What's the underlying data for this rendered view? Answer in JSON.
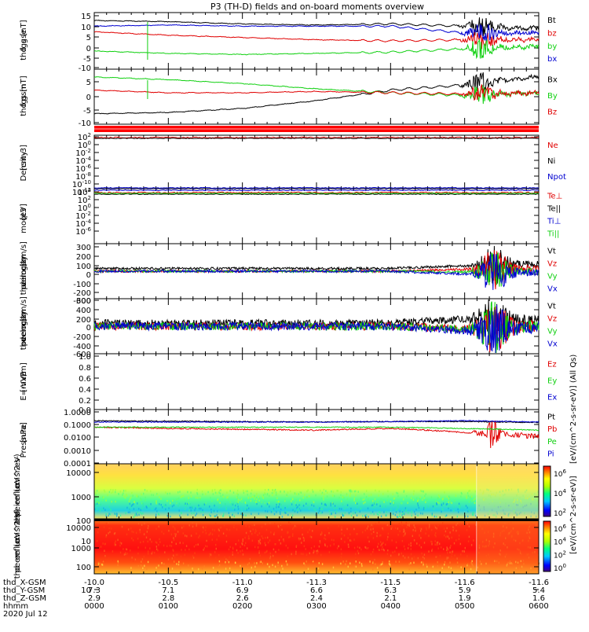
{
  "title": "P3 (TH-D) fields and on-board moments overview",
  "colors": {
    "black": "#000000",
    "red": "#e00000",
    "green": "#10d010",
    "blue": "#0000d0"
  },
  "panels": [
    {
      "id": "fgs-gse",
      "label_lines": [
        "thd",
        "fgs",
        "gse",
        "[nT]"
      ],
      "ticks": [
        "15",
        "10",
        "5",
        "0",
        "-5",
        "-10"
      ],
      "legend": [
        {
          "text": "Bt",
          "color": "#000000"
        },
        {
          "text": "bz",
          "color": "#e00000"
        },
        {
          "text": "by",
          "color": "#10d010"
        },
        {
          "text": "bx",
          "color": "#0000d0"
        }
      ]
    },
    {
      "id": "fgs-gsm",
      "label_lines": [
        "thd",
        "fgs",
        "gsm",
        "[nT]"
      ],
      "ticks": [
        "5",
        "0",
        "-5",
        "-10"
      ],
      "legend": [
        {
          "text": "Bx",
          "color": "#000000"
        },
        {
          "text": "By",
          "color": "#10d010"
        },
        {
          "text": "Bz",
          "color": "#e00000"
        }
      ]
    },
    {
      "id": "density",
      "label_lines": [
        "Density",
        "[cm-3]"
      ],
      "ticks": [
        "10",
        "10",
        "10",
        "10",
        "10",
        "10",
        "10",
        "10"
      ],
      "tick_exponents": [
        "2",
        "0",
        "-2",
        "-4",
        "-6",
        "-8",
        "-10",
        "-12"
      ],
      "legend": [
        {
          "text": "Ne",
          "color": "#e00000"
        },
        {
          "text": "Ni",
          "color": "#000000"
        },
        {
          "text": "Npot",
          "color": "#0000d0"
        }
      ]
    },
    {
      "id": "temperature",
      "label_lines": [
        "moqt3",
        "[eV]"
      ],
      "ticks": [
        "10",
        "10",
        "10",
        "10",
        "10",
        "10"
      ],
      "tick_exponents": [
        "4",
        "2",
        "0",
        "-2",
        "-4",
        "-6"
      ],
      "legend": [
        {
          "text": "Te⊥",
          "color": "#e00000"
        },
        {
          "text": "Te||",
          "color": "#000000"
        },
        {
          "text": "Ti⊥",
          "color": "#0000d0"
        },
        {
          "text": "Ti||",
          "color": "#10d010"
        }
      ]
    },
    {
      "id": "peim-velocity",
      "label_lines": [
        "thd",
        "peim",
        "velocity",
        "gsm",
        "[km/s]"
      ],
      "ticks": [
        "300",
        "200",
        "100",
        "0",
        "-100",
        "-200",
        "-300"
      ],
      "legend": [
        {
          "text": "Vt",
          "color": "#000000"
        },
        {
          "text": "Vz",
          "color": "#e00000"
        },
        {
          "text": "Vy",
          "color": "#10d010"
        },
        {
          "text": "Vx",
          "color": "#0000d0"
        }
      ]
    },
    {
      "id": "peem-velocity",
      "label_lines": [
        "thd",
        "peem",
        "velocity",
        "gsm",
        "[km/s]"
      ],
      "ticks": [
        "600",
        "400",
        "200",
        "0",
        "-200",
        "-400",
        "-600"
      ],
      "legend": [
        {
          "text": "Vt",
          "color": "#000000"
        },
        {
          "text": "Vz",
          "color": "#e00000"
        },
        {
          "text": "Vy",
          "color": "#10d010"
        },
        {
          "text": "Vx",
          "color": "#0000d0"
        }
      ]
    },
    {
      "id": "efield",
      "label_lines": [
        "E=-VxB",
        "[mV/m]"
      ],
      "ticks": [
        "1.0",
        "0.8",
        "0.6",
        "0.4",
        "0.2",
        "0.0"
      ],
      "legend": [
        {
          "text": "Ez",
          "color": "#e00000"
        },
        {
          "text": "Ey",
          "color": "#10d010"
        },
        {
          "text": "Ex",
          "color": "#0000d0"
        }
      ]
    },
    {
      "id": "pressure",
      "label_lines": [
        "Pressure",
        "[nPa]"
      ],
      "ticks": [
        "1.0000",
        "0.1000",
        "0.0100",
        "0.0010",
        "0.0001"
      ],
      "legend": [
        {
          "text": "Pt",
          "color": "#000000"
        },
        {
          "text": "Pb",
          "color": "#e00000"
        },
        {
          "text": "Pe",
          "color": "#10d010"
        },
        {
          "text": "Pi",
          "color": "#0000d0"
        }
      ]
    },
    {
      "id": "peir-eflux",
      "label_lines": [
        "thd",
        "peir",
        "en",
        "eflux",
        "eV",
        "(cm^2-s-",
        "sr-eV)"
      ],
      "ticks": [
        "10000",
        "1000",
        "100",
        "10"
      ],
      "colorbar_label": "[eV/(cm^2-s-sr-eV)] (All Qs)",
      "colorbar_ticks": [
        "10",
        "10",
        "10"
      ],
      "colorbar_exponents": [
        "6",
        "4",
        "2"
      ]
    },
    {
      "id": "peer-eflux",
      "label_lines": [
        "thd",
        "peer",
        "en",
        "eflux",
        "eV",
        "(cm^2-s-",
        "sr-eV)"
      ],
      "ticks": [
        "10000",
        "1000",
        "100",
        "10"
      ],
      "colorbar_label": "[eV/(cm^2-s-sr-eV)]",
      "colorbar_ticks": [
        "10",
        "10",
        "10",
        "10"
      ],
      "colorbar_exponents": [
        "6",
        "4",
        "2",
        "0"
      ]
    }
  ],
  "xaxis": {
    "rows": [
      {
        "label": "thd_X-GSM",
        "values": [
          "-10.0",
          "-10.5",
          "-11.0",
          "-11.3",
          "-11.5",
          "-11.6",
          "-11.6"
        ]
      },
      {
        "label": "thd_Y-GSM",
        "values": [
          "7.3",
          "7.1",
          "6.9",
          "6.6",
          "6.3",
          "5.9",
          "5.4"
        ]
      },
      {
        "label": "thd_Z-GSM",
        "values": [
          "2.9",
          "2.8",
          "2.6",
          "2.4",
          "2.1",
          "1.9",
          "1.6"
        ]
      },
      {
        "label": "hhmm",
        "values": [
          "0000",
          "0100",
          "0200",
          "0300",
          "0400",
          "0500",
          "0600"
        ]
      }
    ],
    "date": "2020 Jul 12"
  },
  "chart_data": {
    "type": "line",
    "title": "P3 (TH-D) fields and on-board moments overview",
    "x": [
      "0000",
      "0100",
      "0200",
      "0300",
      "0400",
      "0500",
      "0600"
    ],
    "xlabel": "hhmm",
    "date": "2020 Jul 12",
    "panels": [
      {
        "ylabel": "thd fgs gse [nT]",
        "ylim": [
          -10,
          15
        ],
        "series": [
          {
            "name": "Bt",
            "values": [
              11.5,
              11,
              10,
              9.5,
              10,
              9,
              8
            ]
          },
          {
            "name": "bz",
            "values": [
              6.5,
              5,
              4,
              3,
              2.5,
              3,
              3
            ]
          },
          {
            "name": "by",
            "values": [
              -2,
              -3,
              -3.5,
              -3,
              -2.5,
              -1,
              0
            ]
          },
          {
            "name": "bx",
            "values": [
              9,
              9.5,
              9,
              9,
              9,
              6,
              6
            ]
          }
        ]
      },
      {
        "ylabel": "thd fgs gsm [nT]",
        "ylim": [
          -13,
          8
        ],
        "series": [
          {
            "name": "Bx",
            "values": [
              -9,
              -8.5,
              -7,
              -4,
              0,
              2,
              5
            ]
          },
          {
            "name": "By",
            "values": [
              5,
              4,
              2.5,
              0.5,
              -1,
              -2,
              -1
            ]
          },
          {
            "name": "Bz",
            "values": [
              0,
              -1,
              -1,
              -0.5,
              -1,
              -1.5,
              -1
            ]
          }
        ]
      },
      {
        "ylabel": "Density [cm-3]",
        "scale": "log",
        "ylim": [
          1e-13,
          100
        ]
      },
      {
        "ylabel": "moqt3 [eV]",
        "scale": "log",
        "ylim": [
          1e-07,
          10000
        ]
      },
      {
        "ylabel": "thd peim velocity gsm [km/s]",
        "ylim": [
          -300,
          300
        ],
        "series": [
          {
            "name": "Vt",
            "values": [
              30,
              30,
              30,
              30,
              30,
              60,
              80
            ]
          },
          {
            "name": "Vz",
            "values": [
              0,
              0,
              0,
              0,
              0,
              20,
              30
            ]
          },
          {
            "name": "Vy",
            "values": [
              0,
              0,
              0,
              0,
              0,
              -10,
              0
            ]
          },
          {
            "name": "Vx",
            "values": [
              0,
              0,
              0,
              0,
              0,
              -30,
              -10
            ]
          }
        ]
      },
      {
        "ylabel": "thd peem velocity gsm [km/s]",
        "ylim": [
          -600,
          600
        ],
        "series": [
          {
            "name": "Vt",
            "values": [
              60,
              60,
              60,
              60,
              70,
              150,
              100
            ]
          },
          {
            "name": "Vz",
            "values": [
              0,
              0,
              0,
              0,
              0,
              -50,
              0
            ]
          },
          {
            "name": "Vy",
            "values": [
              0,
              0,
              0,
              0,
              0,
              -60,
              0
            ]
          },
          {
            "name": "Vx",
            "values": [
              0,
              0,
              0,
              0,
              0,
              -100,
              -20
            ]
          }
        ]
      },
      {
        "ylabel": "E=-VxB [mV/m]",
        "ylim": [
          0,
          1
        ]
      },
      {
        "ylabel": "Pressure [nPa]",
        "scale": "log",
        "ylim": [
          0.0001,
          1
        ],
        "series": [
          {
            "name": "Pt",
            "values": [
              0.15,
              0.14,
              0.13,
              0.12,
              0.13,
              0.13,
              0.11
            ]
          },
          {
            "name": "Pb",
            "values": [
              0.05,
              0.04,
              0.035,
              0.03,
              0.04,
              0.02,
              0.01
            ]
          },
          {
            "name": "Pe",
            "values": [
              0.05,
              0.05,
              0.05,
              0.05,
              0.05,
              0.04,
              0.03
            ]
          },
          {
            "name": "Pi",
            "values": [
              0.12,
              0.12,
              0.12,
              0.12,
              0.13,
              0.15,
              0.12
            ]
          }
        ]
      },
      {
        "ylabel": "thd peir en eflux eV (cm^2-s-sr-eV)",
        "type": "heatmap",
        "scale": "log",
        "ylim": [
          5,
          20000
        ]
      },
      {
        "ylabel": "thd peer en eflux eV (cm^2-s-sr-eV)",
        "type": "heatmap",
        "scale": "log",
        "ylim": [
          5,
          20000
        ]
      }
    ]
  }
}
